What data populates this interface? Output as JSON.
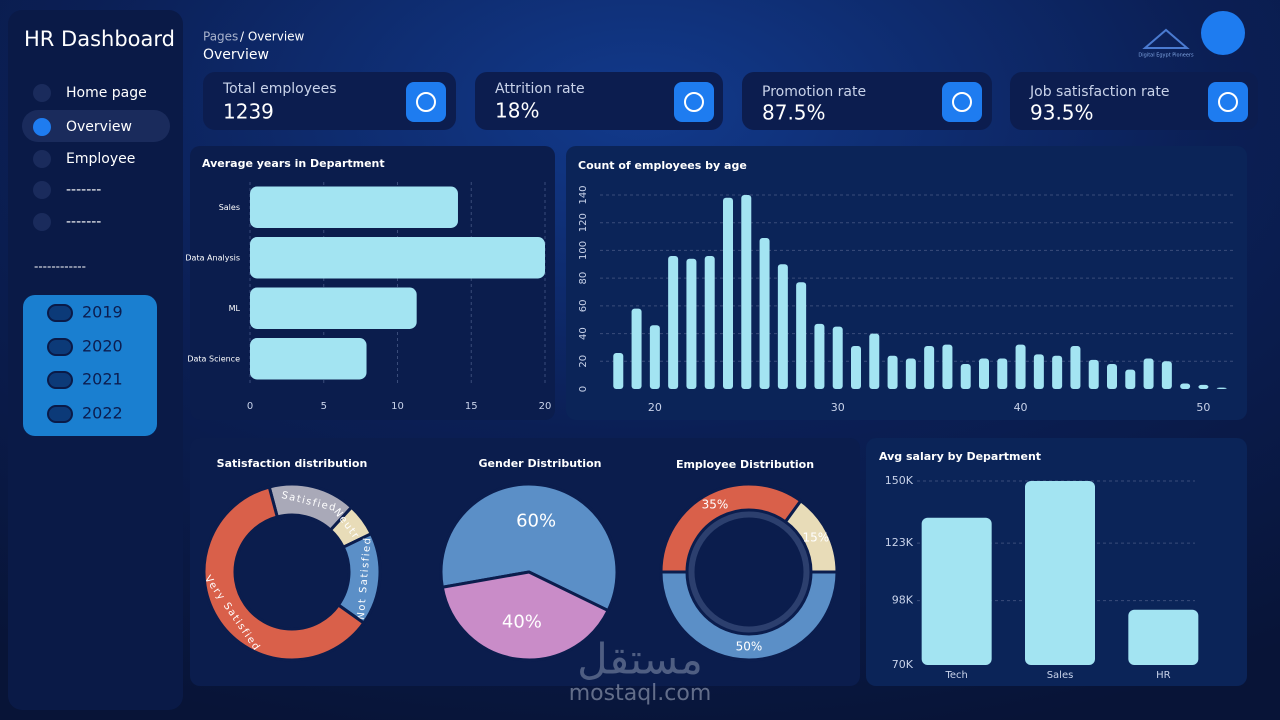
{
  "sidebar": {
    "title": "HR Dashboard",
    "nav": [
      "Home page",
      "Overview",
      "Employee",
      "-------",
      "-------"
    ],
    "divider": "------------",
    "years": [
      "2019",
      "2020",
      "2021",
      "2022"
    ]
  },
  "header": {
    "breadcrumb_root": "Pages",
    "breadcrumb_current": "/ Overview",
    "title": "Overview",
    "logo_text": "Digital Egypt Pioneers"
  },
  "kpis": [
    {
      "label": "Total employees",
      "value": 1239
    },
    {
      "label": "Attrition rate",
      "value": "18%"
    },
    {
      "label": "Promotion rate",
      "value": "87.5%"
    },
    {
      "label": "Job satisfaction rate",
      "value": "93.5%"
    }
  ],
  "chart_data": [
    {
      "type": "bar",
      "orientation": "horizontal",
      "title": "Average years in Department",
      "categories": [
        "Sales",
        "Data Analysis",
        "ML",
        "Data Science"
      ],
      "values": [
        14.1,
        20,
        11.3,
        7.9
      ],
      "color": "#a3e4f2",
      "xlim": [
        0,
        20
      ],
      "xticks": [
        0,
        5,
        10,
        15,
        20
      ],
      "grid": true
    },
    {
      "type": "bar",
      "title": "Count of employees by age",
      "x": [
        18,
        19,
        20,
        21,
        22,
        23,
        24,
        25,
        26,
        27,
        28,
        29,
        30,
        31,
        32,
        33,
        34,
        35,
        36,
        37,
        38,
        39,
        40,
        41,
        42,
        43,
        44,
        45,
        46,
        47,
        48,
        49,
        50,
        51
      ],
      "values": [
        26,
        58,
        46,
        96,
        94,
        96,
        138,
        140,
        109,
        90,
        77,
        47,
        45,
        31,
        40,
        24,
        22,
        31,
        32,
        18,
        22,
        22,
        32,
        25,
        24,
        31,
        21,
        18,
        14,
        22,
        20,
        4,
        3,
        1
      ],
      "color": "#a3e4f2",
      "xlim": [
        17,
        52
      ],
      "xticks": [
        20,
        30,
        40,
        50
      ],
      "ylim": [
        0,
        140
      ],
      "yticks": [
        0,
        20,
        40,
        60,
        80,
        100,
        120,
        140
      ],
      "grid": true
    },
    {
      "type": "donut",
      "title": "Satisfaction distribution",
      "categories": [
        "Satisfied",
        "Neutral",
        "Not Satisfied",
        "Very Satisfied"
      ],
      "values": [
        16,
        6,
        17,
        61
      ],
      "colors": [
        "#a9a9b8",
        "#e8dcb8",
        "#5b8fc7",
        "#d9604a"
      ]
    },
    {
      "type": "pie",
      "title": "Gender Distribution",
      "values": [
        60,
        40
      ],
      "value_labels": [
        "60%",
        "40%"
      ],
      "colors": [
        "#5b8fc7",
        "#c98cc8"
      ]
    },
    {
      "type": "donut",
      "title": "Employee Distribution",
      "values": [
        35,
        15,
        50
      ],
      "value_labels": [
        "35%",
        "15%",
        "50%"
      ],
      "colors": [
        "#d9604a",
        "#e8dcb8",
        "#5b8fc7"
      ]
    },
    {
      "type": "bar",
      "title": "Avg salary by Department",
      "categories": [
        "Tech",
        "Sales",
        "HR"
      ],
      "values": [
        134000,
        150000,
        94000
      ],
      "color": "#a3e4f2",
      "ylim": [
        70000,
        150000
      ],
      "yticks": [
        {
          "value": 70000,
          "label": "70K"
        },
        {
          "value": 98000,
          "label": "98K"
        },
        {
          "value": 123000,
          "label": "123K"
        },
        {
          "value": 150000,
          "label": "150K"
        }
      ],
      "grid": true
    }
  ],
  "watermark": [
    "مستقل",
    "mostaql.com"
  ]
}
